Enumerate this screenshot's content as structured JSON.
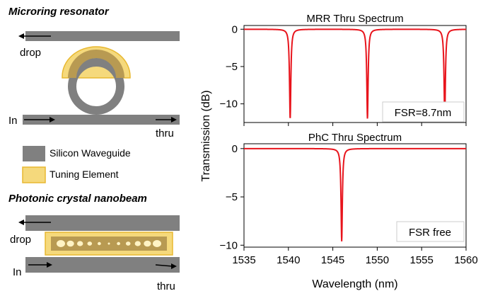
{
  "diagram": {
    "microring": {
      "title": "Microring resonator",
      "drop_label": "drop",
      "in_label": "In",
      "thru_label": "thru"
    },
    "legend": {
      "waveguide_label": "Silicon Waveguide",
      "tuning_label": "Tuning Element",
      "colors": {
        "waveguide": "#808080",
        "tuning_fill": "#f5d97c",
        "tuning_border": "#e8b830",
        "tuning_overlap": "#b89a52"
      }
    },
    "nanobeam": {
      "title": "Photonic crystal nanobeam",
      "drop_label": "drop",
      "in_label": "In",
      "thru_label": "thru",
      "holes": 11
    }
  },
  "chart_data": [
    {
      "type": "line",
      "title": "MRR Thru Spectrum",
      "xlim": [
        1535,
        1560
      ],
      "ylim": [
        -12.5,
        0.5
      ],
      "yticks": [
        0,
        -5,
        -10
      ],
      "ytick_labels": [
        "0",
        "−5",
        "−10"
      ],
      "series": [
        {
          "color": "#e8141c",
          "baseline": 0,
          "dips": [
            {
              "x": 1540.2,
              "depth": -12.0
            },
            {
              "x": 1548.9,
              "depth": -12.0
            },
            {
              "x": 1557.6,
              "depth": -12.0
            }
          ]
        }
      ],
      "annotation": "FSR=8.7nm"
    },
    {
      "type": "line",
      "title": "PhC Thru Spectrum",
      "xlim": [
        1535,
        1560
      ],
      "ylim": [
        -10.2,
        0.5
      ],
      "xticks": [
        1535,
        1540,
        1545,
        1550,
        1555,
        1560
      ],
      "yticks": [
        0,
        -5,
        -10
      ],
      "ytick_labels": [
        "0",
        "−5",
        "−10"
      ],
      "series": [
        {
          "color": "#e8141c",
          "baseline": 0,
          "dips": [
            {
              "x": 1546.0,
              "depth": -9.6
            }
          ]
        }
      ],
      "annotation": "FSR free",
      "xlabel": "Wavelength (nm)"
    }
  ],
  "shared_ylabel": "Transmission (dB)"
}
